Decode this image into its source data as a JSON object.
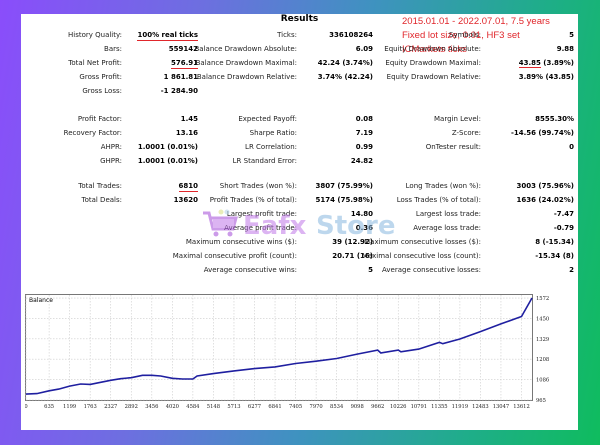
{
  "report": {
    "title": "Results",
    "notes": [
      "2015.01.01 - 2022.07.01, 7.5 years",
      "Fixed lot size, 0.01, HF3 set",
      "ICMarkets ticks"
    ],
    "col1": [
      {
        "label": "History Quality:",
        "value": "100% real ticks",
        "underline": true
      },
      {
        "label": "Bars:",
        "value": "559142"
      },
      {
        "label": "Total Net Profit:",
        "value": "576.91",
        "underline": true
      },
      {
        "label": "Gross Profit:",
        "value": "1 861.81"
      },
      {
        "label": "Gross Loss:",
        "value": "-1 284.90"
      },
      {
        "label": "Profit Factor:",
        "value": "1.45"
      },
      {
        "label": "Recovery Factor:",
        "value": "13.16"
      },
      {
        "label": "AHPR:",
        "value": "1.0001 (0.01%)"
      },
      {
        "label": "GHPR:",
        "value": "1.0001 (0.01%)"
      },
      {
        "label": "Total Trades:",
        "value": "6810",
        "underline": true
      },
      {
        "label": "Total Deals:",
        "value": "13620"
      }
    ],
    "col2": [
      {
        "label": "Ticks:",
        "value": "336108264"
      },
      {
        "label": "Balance Drawdown Absolute:",
        "value": "6.09"
      },
      {
        "label": "Balance Drawdown Maximal:",
        "value": "42.24 (3.74%)"
      },
      {
        "label": "Balance Drawdown Relative:",
        "value": "3.74% (42.24)"
      },
      {
        "label": "Expected Payoff:",
        "value": "0.08"
      },
      {
        "label": "Sharpe Ratio:",
        "value": "7.19"
      },
      {
        "label": "LR Correlation:",
        "value": "0.99"
      },
      {
        "label": "LR Standard Error:",
        "value": "24.82"
      },
      {
        "label": "Short Trades (won %):",
        "value": "3807 (75.99%)"
      },
      {
        "label": "Profit Trades (% of total):",
        "value": "5174 (75.98%)"
      },
      {
        "label": "Largest profit trade:",
        "value": "14.80"
      },
      {
        "label": "Average profit trade:",
        "value": "0.36"
      },
      {
        "label": "Maximum consecutive wins ($):",
        "value": "39 (12.92)"
      },
      {
        "label": "Maximal consecutive profit (count):",
        "value": "20.71 (16)"
      },
      {
        "label": "Average consecutive wins:",
        "value": "5"
      }
    ],
    "col3": [
      {
        "label": "Symbols:",
        "value": "5"
      },
      {
        "label": "Equity Drawdown Absolute:",
        "value": "9.88"
      },
      {
        "label": "Equity Drawdown Maximal:",
        "value": "43.85 (3.89%)",
        "underline_part": "43.85"
      },
      {
        "label": "Equity Drawdown Relative:",
        "value": "3.89% (43.85)"
      },
      {
        "label": "Margin Level:",
        "value": "8555.30%"
      },
      {
        "label": "Z-Score:",
        "value": "-14.56 (99.74%)"
      },
      {
        "label": "OnTester result:",
        "value": "0"
      },
      {
        "label": "Long Trades (won %):",
        "value": "3003 (75.96%)"
      },
      {
        "label": "Loss Trades (% of total):",
        "value": "1636 (24.02%)"
      },
      {
        "label": "Largest loss trade:",
        "value": "-7.47"
      },
      {
        "label": "Average loss trade:",
        "value": "-0.79"
      },
      {
        "label": "Maximum consecutive losses ($):",
        "value": "8 (-15.34)"
      },
      {
        "label": "Maximal consecutive loss (count):",
        "value": "-15.34 (8)"
      },
      {
        "label": "Average consecutive losses:",
        "value": "2"
      }
    ]
  },
  "watermark": {
    "text": "Eafx Store",
    "icon": "shopping-cart-icon"
  },
  "chart_data": {
    "type": "line",
    "title": "Balance",
    "xlabel": "",
    "ylabel": "",
    "x_ticks": [
      0,
      635,
      1199,
      1763,
      2327,
      2892,
      3456,
      4020,
      4584,
      5148,
      5713,
      6277,
      6841,
      7405,
      7970,
      8534,
      9098,
      9662,
      10226,
      10791,
      11355,
      11919,
      12483,
      13047,
      13612
    ],
    "y_ticks": [
      965,
      1086,
      1208,
      1329,
      1450,
      1572
    ],
    "ylim": [
      965,
      1590
    ],
    "grid": true,
    "series": [
      {
        "name": "Balance",
        "color": "#1f1fa0",
        "x": [
          0,
          300,
          635,
          900,
          1199,
          1500,
          1763,
          2000,
          2327,
          2600,
          2892,
          3200,
          3456,
          3700,
          4020,
          4300,
          4584,
          4700,
          5148,
          5713,
          6277,
          6841,
          7405,
          7970,
          8534,
          9098,
          9662,
          9750,
          10226,
          10300,
          10791,
          11355,
          11450,
          11919,
          12483,
          13047,
          13200,
          13612,
          13900
        ],
        "values": [
          1000,
          1003,
          1020,
          1030,
          1048,
          1060,
          1058,
          1068,
          1082,
          1092,
          1098,
          1112,
          1112,
          1108,
          1094,
          1090,
          1090,
          1108,
          1122,
          1138,
          1152,
          1162,
          1182,
          1196,
          1212,
          1238,
          1262,
          1245,
          1262,
          1252,
          1268,
          1308,
          1300,
          1328,
          1372,
          1418,
          1430,
          1462,
          1572
        ]
      }
    ]
  }
}
